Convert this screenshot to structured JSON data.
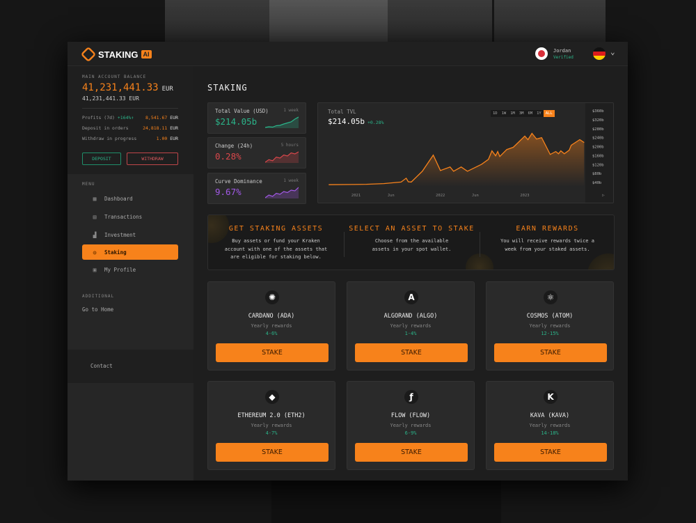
{
  "header": {
    "brand": "STAKING",
    "brand_badge": "AI",
    "user_name": "Jordan",
    "user_status": "Verified"
  },
  "account": {
    "label": "MAIN ACCOUNT BALANCE",
    "balance": "41,231,441.33",
    "currency": "EUR",
    "balance_secondary": "41,231,441.33 EUR",
    "rows": [
      {
        "label": "Profits (7d)",
        "delta": "+164%↑",
        "value": "8,541.67",
        "currency": "EUR"
      },
      {
        "label": "Deposit in orders",
        "value": "24,818.11",
        "currency": "EUR"
      },
      {
        "label": "Withdraw in progress",
        "value": "1.00",
        "currency": "EUR"
      }
    ],
    "deposit": "DEPOSIT",
    "withdraw": "WITHDRAW"
  },
  "menu": {
    "label": "MENU",
    "items": [
      {
        "label": "Dashboard",
        "icon": "grid-icon"
      },
      {
        "label": "Transactions",
        "icon": "receipt-icon"
      },
      {
        "label": "Investment",
        "icon": "bar-chart-icon"
      },
      {
        "label": "Staking",
        "icon": "coins-icon",
        "active": true
      },
      {
        "label": "My Profile",
        "icon": "profile-icon"
      }
    ]
  },
  "additional": {
    "label": "ADDITIONAL",
    "go_home": "Go to Home",
    "contact": "Contact"
  },
  "page": {
    "title": "STAKING"
  },
  "stats": [
    {
      "title": "Total Value (USD)",
      "period": "1 week",
      "value": "$214.05b",
      "color": "#2bb58a",
      "sparkline": [
        1,
        1.2,
        1.1,
        1.5,
        1.6,
        2,
        2.3,
        2.6,
        3.4,
        4
      ]
    },
    {
      "title": "Change (24h)",
      "period": "5 hours",
      "value": "0.28%",
      "color": "#d9474b",
      "sparkline": [
        1,
        1.5,
        1.3,
        2,
        1.8,
        2.4,
        2.2,
        2.8,
        2.6,
        3
      ]
    },
    {
      "title": "Curve Dominance",
      "period": "1 week",
      "value": "9.67%",
      "color": "#a259e6",
      "sparkline": [
        1,
        1.8,
        1.4,
        2.3,
        2,
        2.8,
        2.5,
        3.2,
        3,
        4
      ]
    }
  ],
  "chart_data": {
    "type": "area",
    "title": "Total TVL",
    "value": "$214.05b",
    "change": "+0.28%",
    "ranges": [
      "1D",
      "1W",
      "1M",
      "3M",
      "6M",
      "1Y",
      "ALL"
    ],
    "selected_range": "ALL",
    "color": "#f7821b",
    "xlim": [
      "2020-09-01",
      "2023-09-20"
    ],
    "ylim": [
      40,
      360
    ],
    "x_ticks": [
      {
        "date": "2021-01-01",
        "label": "2021"
      },
      {
        "date": "2021-06-01",
        "label": "Jun"
      },
      {
        "date": "2022-01-01",
        "label": "2022"
      },
      {
        "date": "2022-06-01",
        "label": "Jun"
      },
      {
        "date": "2023-01-01",
        "label": "2023"
      }
    ],
    "y_ticks": [
      "$360b",
      "$320b",
      "$280b",
      "$240b",
      "$200b",
      "$160b",
      "$120b",
      "$80b",
      "$40b"
    ],
    "y_tick_values": [
      360,
      320,
      280,
      240,
      200,
      160,
      120,
      80,
      40
    ],
    "points": [
      [
        "2020-09-05",
        30
      ],
      [
        "2020-12-15",
        31
      ],
      [
        "2021-02-15",
        32
      ],
      [
        "2021-05-01",
        35
      ],
      [
        "2021-07-15",
        42
      ],
      [
        "2021-08-06",
        59
      ],
      [
        "2021-08-15",
        43
      ],
      [
        "2021-08-28",
        42
      ],
      [
        "2021-10-15",
        90
      ],
      [
        "2021-12-01",
        162
      ],
      [
        "2022-01-01",
        93
      ],
      [
        "2022-02-12",
        109
      ],
      [
        "2022-02-27",
        90
      ],
      [
        "2022-04-01",
        109
      ],
      [
        "2022-04-28",
        90
      ],
      [
        "2022-06-28",
        121
      ],
      [
        "2022-07-28",
        143
      ],
      [
        "2022-08-12",
        181
      ],
      [
        "2022-08-28",
        159
      ],
      [
        "2022-09-06",
        178
      ],
      [
        "2022-09-15",
        156
      ],
      [
        "2022-10-15",
        187
      ],
      [
        "2022-11-12",
        197
      ],
      [
        "2023-01-01",
        247
      ],
      [
        "2023-01-15",
        231
      ],
      [
        "2023-02-01",
        259
      ],
      [
        "2023-02-21",
        234
      ],
      [
        "2023-03-15",
        240
      ],
      [
        "2023-04-21",
        165
      ],
      [
        "2023-05-15",
        178
      ],
      [
        "2023-05-27",
        168
      ],
      [
        "2023-06-06",
        181
      ],
      [
        "2023-06-21",
        168
      ],
      [
        "2023-07-12",
        184
      ],
      [
        "2023-07-21",
        206
      ],
      [
        "2023-08-27",
        231
      ],
      [
        "2023-09-15",
        218
      ]
    ]
  },
  "steps": [
    {
      "title": "GET STAKING ASSETS",
      "text": "Buy assets or fund your Kraken account with one of the assets that are eligible for staking below."
    },
    {
      "title": "SELECT AN ASSET TO STAKE",
      "text": "Choose from the available assets in your spot wallet."
    },
    {
      "title": "EARN REWARDS",
      "text": "You will receive rewards twice a week from your staked assets."
    }
  ],
  "assets": [
    {
      "name": "CARDANO (ADA)",
      "label": "Yearly rewards",
      "rate": "4-6%",
      "icon": "cardano-icon",
      "glyph": "✺",
      "button": "STAKE"
    },
    {
      "name": "ALGORAND (ALGO)",
      "label": "Yearly rewards",
      "rate": "1-4%",
      "icon": "algorand-icon",
      "glyph": "A",
      "button": "STAKE"
    },
    {
      "name": "COSMOS (ATOM)",
      "label": "Yearly rewards",
      "rate": "12-15%",
      "icon": "cosmos-icon",
      "glyph": "⚛",
      "button": "STAKE"
    },
    {
      "name": "ETHEREUM 2.0 (ETH2)",
      "label": "Yearly rewards",
      "rate": "4-7%",
      "icon": "ethereum-icon",
      "glyph": "◆",
      "button": "STAKE"
    },
    {
      "name": "FLOW (FLOW)",
      "label": "Yearly rewards",
      "rate": "6-9%",
      "icon": "flow-icon",
      "glyph": "ƒ",
      "button": "STAKE"
    },
    {
      "name": "KAVA (KAVA)",
      "label": "Yearly rewards",
      "rate": "14-18%",
      "icon": "kava-icon",
      "glyph": "K",
      "button": "STAKE"
    }
  ]
}
